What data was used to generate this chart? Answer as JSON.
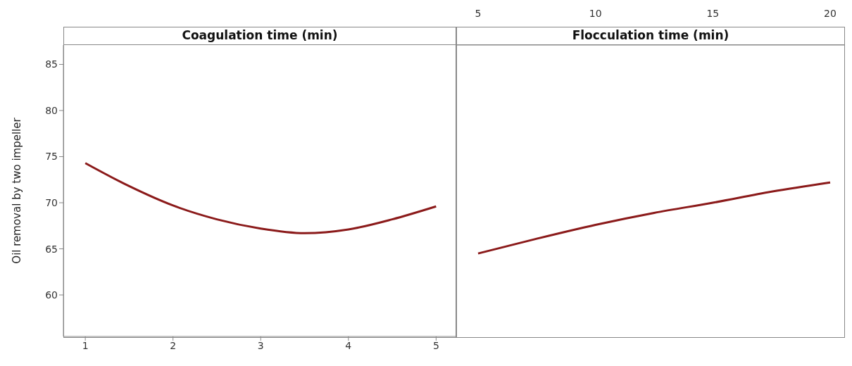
{
  "chart_data": [
    {
      "type": "line",
      "title": "Coagulation time (min)",
      "ylabel": "Oil removal by two impeller",
      "x": [
        1,
        1.5,
        2,
        2.5,
        3,
        3.5,
        4,
        4.5,
        5
      ],
      "series": [
        {
          "color": "#8b1a1a",
          "values": [
            74.3,
            71.8,
            69.7,
            68.2,
            67.2,
            66.7,
            67.1,
            68.2,
            69.6
          ]
        }
      ],
      "xlim": [
        0.75,
        5.23
      ],
      "xticks": [
        1,
        2,
        3,
        4,
        5
      ],
      "ylim": [
        55.5,
        87.1
      ],
      "yticks": [
        60,
        65,
        70,
        75,
        80,
        85
      ],
      "marker": "none"
    },
    {
      "type": "line",
      "title": "Flocculation time (min)",
      "x": [
        5,
        7.5,
        10,
        12.5,
        15,
        17.5,
        20
      ],
      "series": [
        {
          "color": "#8b1a1a",
          "values": [
            64.5,
            66.1,
            67.6,
            68.9,
            70.0,
            71.2,
            72.2
          ]
        }
      ],
      "xlim": [
        4.07,
        20.63
      ],
      "xticks": [
        5,
        10,
        15,
        20
      ],
      "ylim": [
        55.5,
        87.1
      ],
      "tick_labels": "x",
      "marker": "none"
    }
  ]
}
